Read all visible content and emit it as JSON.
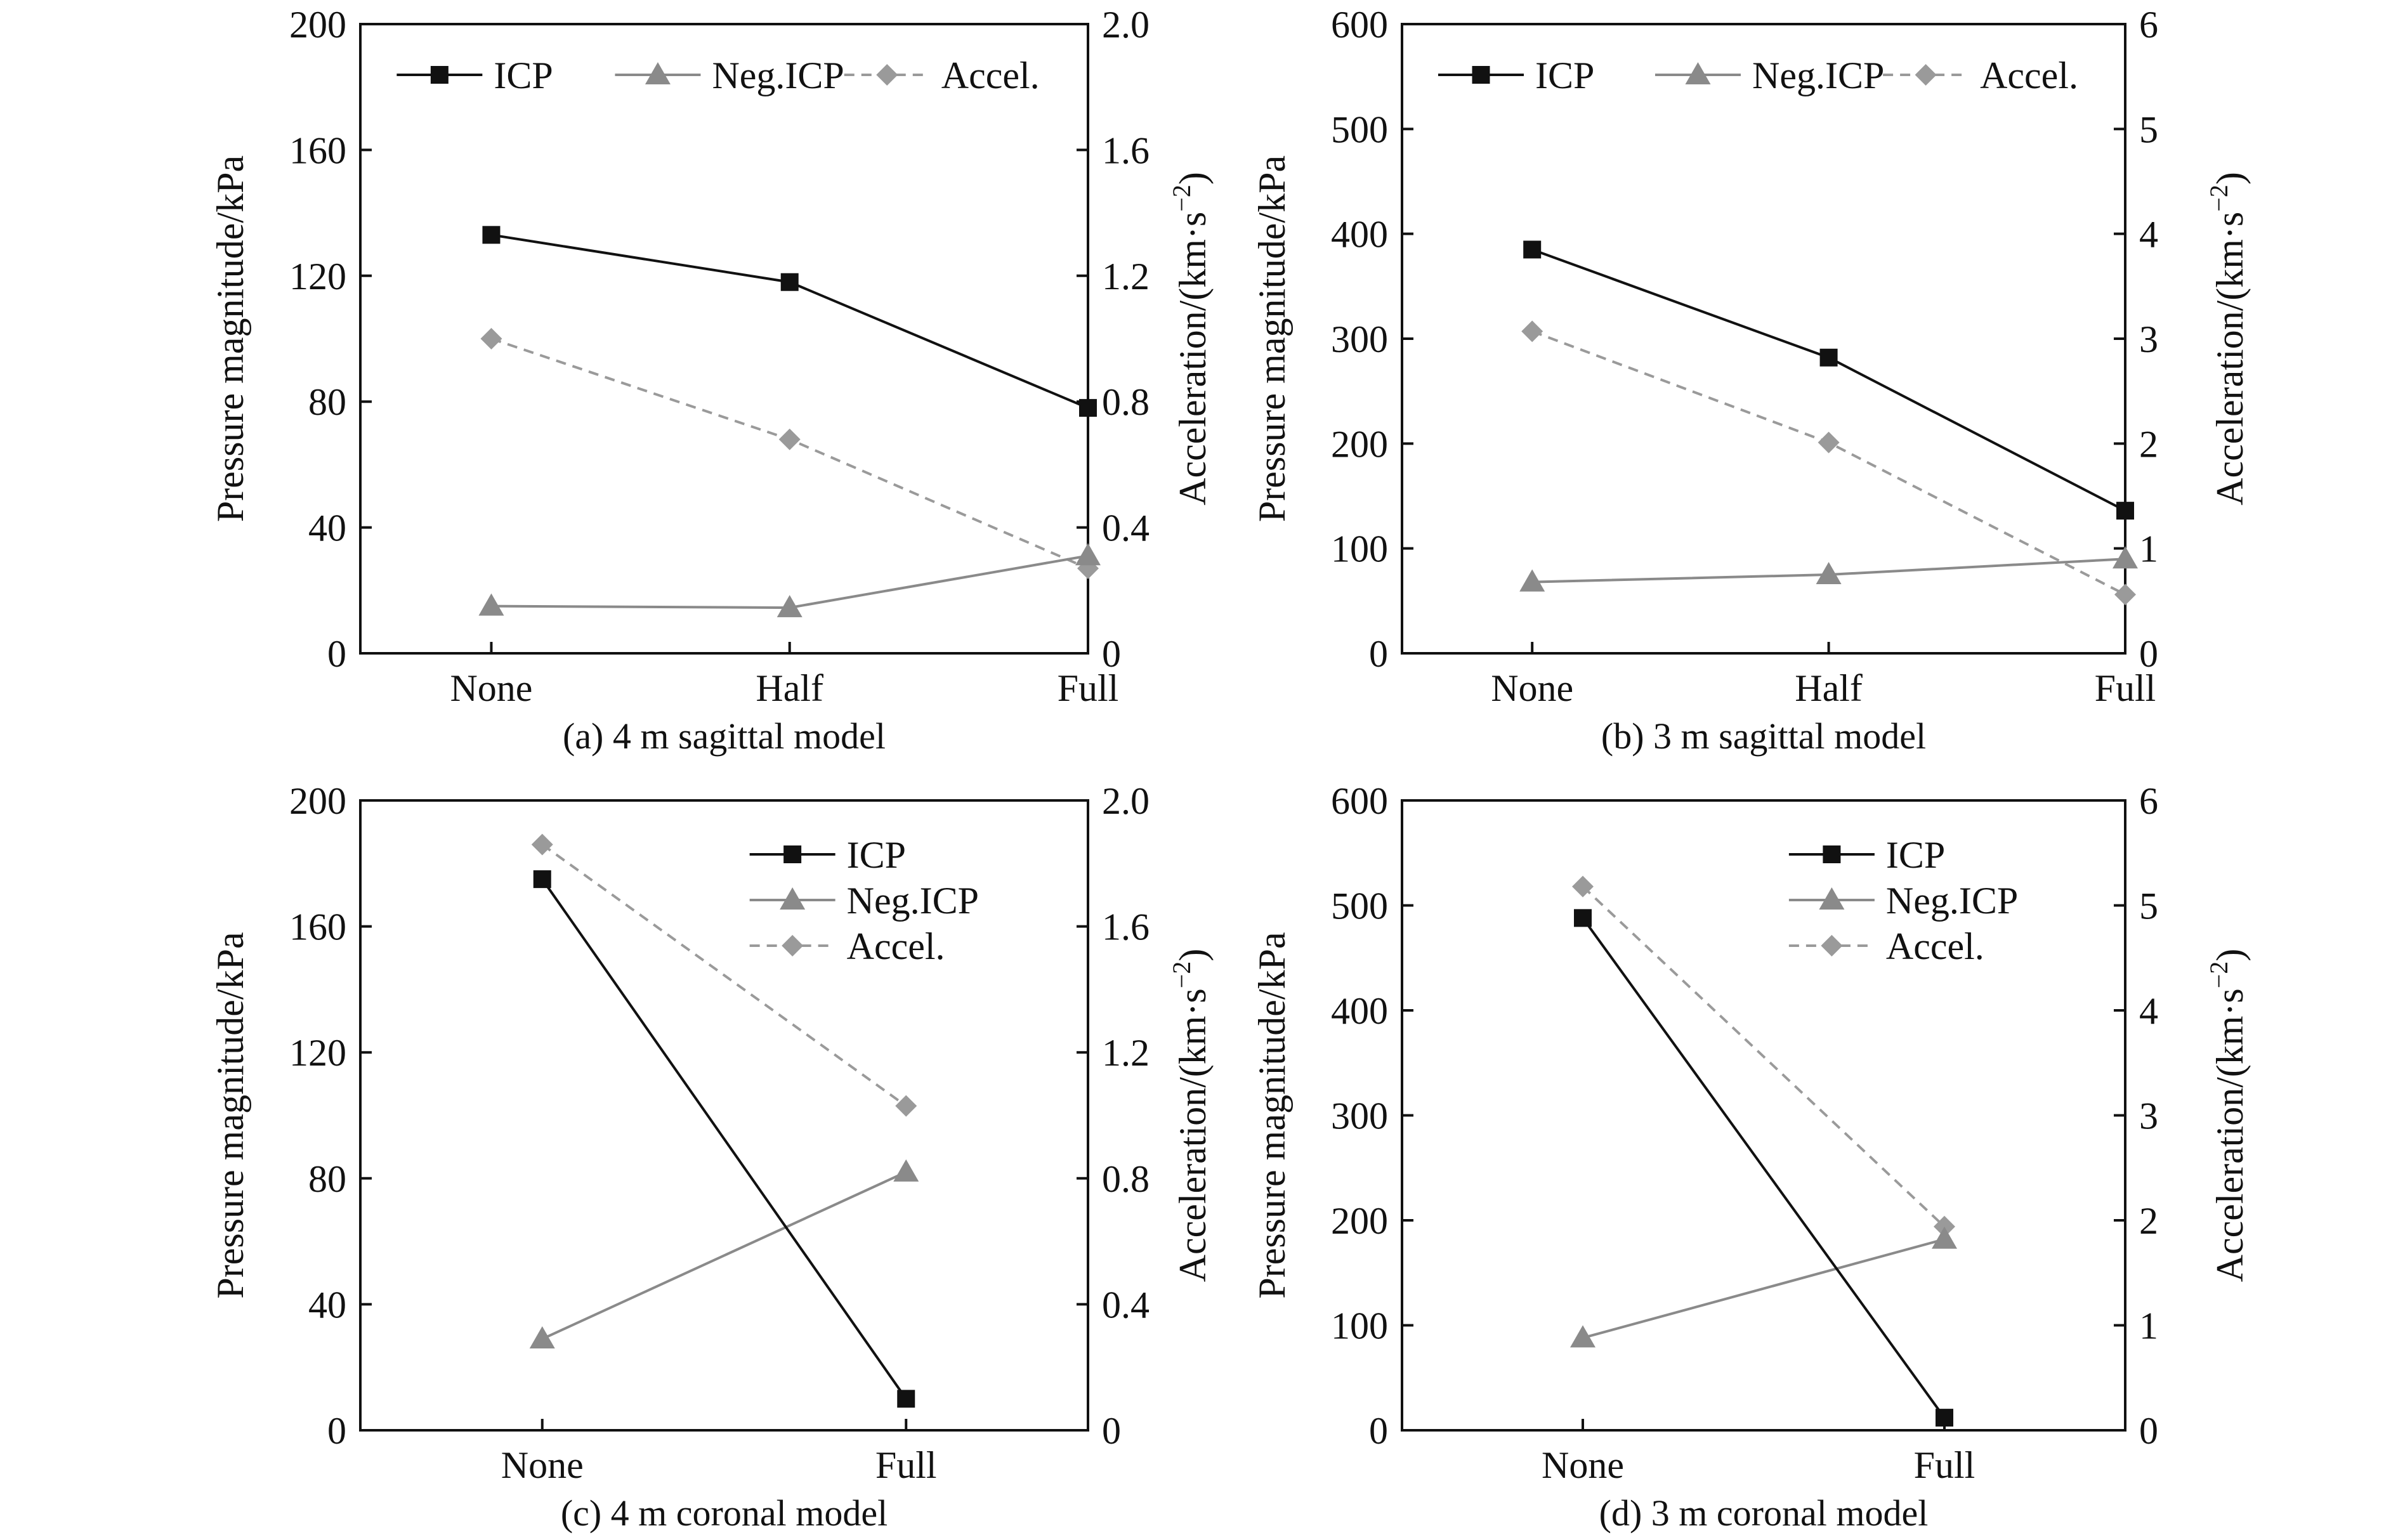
{
  "colors": {
    "icp": "#111111",
    "neg_icp": "#8a8a8a",
    "accel": "#9a9a9a",
    "axis": "#111111"
  },
  "chart_data": [
    {
      "type": "line",
      "title": "(a) 4 m sagittal model",
      "categories": [
        "None",
        "Half",
        "Full"
      ],
      "ylabel": "Pressure magnitude/kPa",
      "y2label": "Acceleration/(km·s⁻²)",
      "ylim": [
        0,
        200
      ],
      "y2lim": [
        0,
        2.0
      ],
      "yticks": [
        "0",
        "40",
        "80",
        "120",
        "160",
        "200"
      ],
      "y2ticks": [
        "0",
        "0.4",
        "0.8",
        "1.2",
        "1.6",
        "2.0"
      ],
      "legend": "top",
      "series": [
        {
          "name": "ICP",
          "axis": "left",
          "values": [
            133,
            118,
            78
          ]
        },
        {
          "name": "Neg.ICP",
          "axis": "left",
          "values": [
            15,
            14.5,
            31
          ]
        },
        {
          "name": "Accel.",
          "axis": "right",
          "values": [
            1.0,
            0.68,
            0.27
          ]
        }
      ]
    },
    {
      "type": "line",
      "title": "(b) 3 m sagittal model",
      "categories": [
        "None",
        "Half",
        "Full"
      ],
      "ylabel": "Pressure magnitude/kPa",
      "y2label": "Acceleration/(km·s⁻²)",
      "ylim": [
        0,
        600
      ],
      "y2lim": [
        0,
        6
      ],
      "yticks": [
        "0",
        "100",
        "200",
        "300",
        "400",
        "500",
        "600"
      ],
      "y2ticks": [
        "0",
        "1",
        "2",
        "3",
        "4",
        "5",
        "6"
      ],
      "legend": "top",
      "series": [
        {
          "name": "ICP",
          "axis": "left",
          "values": [
            385,
            282,
            136
          ]
        },
        {
          "name": "Neg.ICP",
          "axis": "left",
          "values": [
            68,
            75,
            90
          ]
        },
        {
          "name": "Accel.",
          "axis": "right",
          "values": [
            3.07,
            2.01,
            0.56
          ]
        }
      ]
    },
    {
      "type": "line",
      "title": "(c) 4 m coronal model",
      "categories": [
        "None",
        "Full"
      ],
      "ylabel": "Pressure magnitude/kPa",
      "y2label": "Acceleration/(km·s⁻²)",
      "ylim": [
        0,
        200
      ],
      "y2lim": [
        0,
        2.0
      ],
      "yticks": [
        "0",
        "40",
        "80",
        "120",
        "160",
        "200"
      ],
      "y2ticks": [
        "0",
        "0.4",
        "0.8",
        "1.2",
        "1.6",
        "2.0"
      ],
      "legend": "top-right",
      "series": [
        {
          "name": "ICP",
          "axis": "left",
          "values": [
            175,
            10
          ]
        },
        {
          "name": "Neg.ICP",
          "axis": "left",
          "values": [
            29,
            82
          ]
        },
        {
          "name": "Accel.",
          "axis": "right",
          "values": [
            1.86,
            1.03
          ]
        }
      ]
    },
    {
      "type": "line",
      "title": "(d) 3 m coronal model",
      "categories": [
        "None",
        "Full"
      ],
      "ylabel": "Pressure magnitude/kPa",
      "y2label": "Acceleration/(km·s⁻²)",
      "ylim": [
        0,
        600
      ],
      "y2lim": [
        0,
        6
      ],
      "yticks": [
        "0",
        "100",
        "200",
        "300",
        "400",
        "500",
        "600"
      ],
      "y2ticks": [
        "0",
        "1",
        "2",
        "3",
        "4",
        "5",
        "6"
      ],
      "legend": "top-right",
      "series": [
        {
          "name": "ICP",
          "axis": "left",
          "values": [
            488,
            12
          ]
        },
        {
          "name": "Neg.ICP",
          "axis": "left",
          "values": [
            88,
            182
          ]
        },
        {
          "name": "Accel.",
          "axis": "right",
          "values": [
            5.18,
            1.94
          ]
        }
      ]
    }
  ]
}
